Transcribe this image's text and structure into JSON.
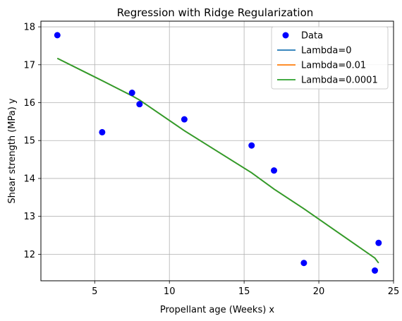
{
  "chart_data": {
    "type": "scatter",
    "title": "Regression with Ridge Regularization",
    "xlabel": "Propellant age (Weeks) x",
    "ylabel": "Shear strength (MPa) y",
    "xlim": [
      1.4,
      25.0
    ],
    "ylim": [
      11.3,
      18.15
    ],
    "xticks": [
      5,
      10,
      15,
      20,
      25
    ],
    "yticks": [
      12,
      13,
      14,
      15,
      16,
      17,
      18
    ],
    "grid": true,
    "legend_position": "top-right",
    "scatter": {
      "name": "Data",
      "color": "#0000ff",
      "points": [
        {
          "x": 2.5,
          "y": 17.78
        },
        {
          "x": 5.5,
          "y": 15.22
        },
        {
          "x": 7.5,
          "y": 16.26
        },
        {
          "x": 8.0,
          "y": 15.96
        },
        {
          "x": 11.0,
          "y": 15.56
        },
        {
          "x": 15.5,
          "y": 14.87
        },
        {
          "x": 17.0,
          "y": 14.21
        },
        {
          "x": 19.0,
          "y": 11.77
        },
        {
          "x": 23.75,
          "y": 11.57
        },
        {
          "x": 24.0,
          "y": 12.3
        }
      ]
    },
    "series": [
      {
        "name": "Lambda=0",
        "color": "#1f77b4",
        "points": [
          {
            "x": 2.5,
            "y": 17.17
          },
          {
            "x": 5.5,
            "y": 16.58
          },
          {
            "x": 7.5,
            "y": 16.18
          },
          {
            "x": 8.0,
            "y": 16.07
          },
          {
            "x": 11.0,
            "y": 15.26
          },
          {
            "x": 15.5,
            "y": 14.15
          },
          {
            "x": 17.0,
            "y": 13.72
          },
          {
            "x": 19.0,
            "y": 13.2
          },
          {
            "x": 23.75,
            "y": 11.9
          },
          {
            "x": 24.0,
            "y": 11.77
          }
        ]
      },
      {
        "name": "Lambda=0.01",
        "color": "#ff7f0e",
        "points": [
          {
            "x": 2.5,
            "y": 17.17
          },
          {
            "x": 5.5,
            "y": 16.58
          },
          {
            "x": 7.5,
            "y": 16.18
          },
          {
            "x": 8.0,
            "y": 16.07
          },
          {
            "x": 11.0,
            "y": 15.26
          },
          {
            "x": 15.5,
            "y": 14.15
          },
          {
            "x": 17.0,
            "y": 13.72
          },
          {
            "x": 19.0,
            "y": 13.2
          },
          {
            "x": 23.75,
            "y": 11.9
          },
          {
            "x": 24.0,
            "y": 11.77
          }
        ]
      },
      {
        "name": "Lambda=0.0001",
        "color": "#2ca02c",
        "points": [
          {
            "x": 2.5,
            "y": 17.17
          },
          {
            "x": 5.5,
            "y": 16.58
          },
          {
            "x": 7.5,
            "y": 16.18
          },
          {
            "x": 8.0,
            "y": 16.07
          },
          {
            "x": 11.0,
            "y": 15.26
          },
          {
            "x": 15.5,
            "y": 14.15
          },
          {
            "x": 17.0,
            "y": 13.72
          },
          {
            "x": 19.0,
            "y": 13.2
          },
          {
            "x": 23.75,
            "y": 11.9
          },
          {
            "x": 24.0,
            "y": 11.77
          }
        ]
      }
    ],
    "legend": {
      "entries": [
        "Data",
        "Lambda=0",
        "Lambda=0.01",
        "Lambda=0.0001"
      ]
    }
  }
}
